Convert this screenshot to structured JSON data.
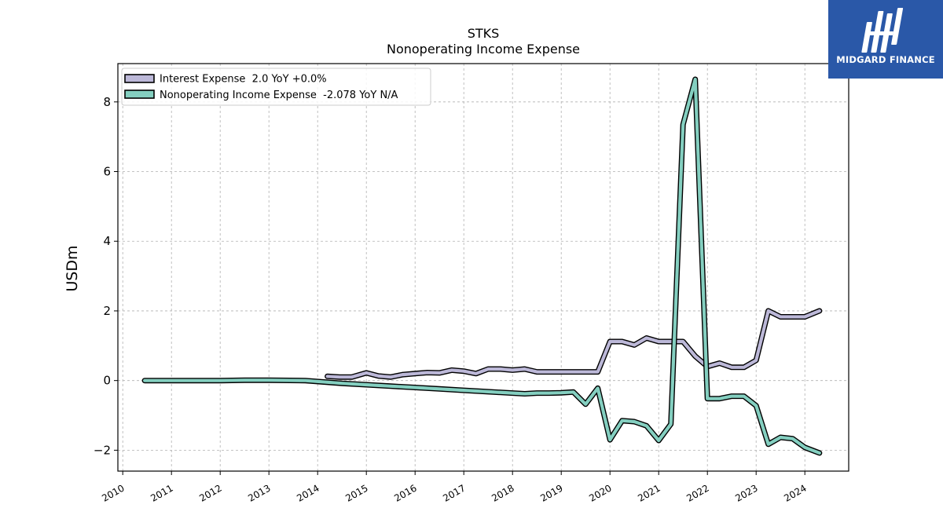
{
  "brand": {
    "name": "MIDGARD FINANCE",
    "icon": "midgard-logo-icon",
    "color": "#2a58a8"
  },
  "chart_data": {
    "type": "line",
    "title": "STKS",
    "subtitle": "Nonoperating Income Expense",
    "xlabel": "",
    "ylabel": "USDm",
    "xlim": [
      2009.9,
      2024.9
    ],
    "ylim": [
      -2.6,
      9.1
    ],
    "x_ticks": [
      2010,
      2011,
      2012,
      2013,
      2014,
      2015,
      2016,
      2017,
      2018,
      2019,
      2020,
      2021,
      2022,
      2023,
      2024
    ],
    "y_ticks": [
      -2,
      0,
      2,
      4,
      6,
      8
    ],
    "y_tick_labels": [
      "−2",
      "0",
      "2",
      "4",
      "6",
      "8"
    ],
    "grid": true,
    "legend_position": "top-left",
    "series": [
      {
        "name": "Interest Expense  2.0 YoY +0.0%",
        "color": "#bcb8d8",
        "x": [
          2014.2,
          2014.45,
          2014.7,
          2015.0,
          2015.25,
          2015.5,
          2015.75,
          2016.0,
          2016.25,
          2016.5,
          2016.75,
          2017.0,
          2017.25,
          2017.5,
          2017.75,
          2018.0,
          2018.25,
          2018.5,
          2018.75,
          2019.0,
          2019.25,
          2019.5,
          2019.75,
          2020.0,
          2020.25,
          2020.5,
          2020.75,
          2021.0,
          2021.25,
          2021.5,
          2021.75,
          2022.0,
          2022.25,
          2022.5,
          2022.75,
          2023.0,
          2023.25,
          2023.5,
          2023.75,
          2024.0,
          2024.3
        ],
        "y": [
          0.12,
          0.1,
          0.1,
          0.22,
          0.13,
          0.1,
          0.17,
          0.2,
          0.23,
          0.22,
          0.3,
          0.27,
          0.2,
          0.33,
          0.33,
          0.3,
          0.33,
          0.25,
          0.25,
          0.25,
          0.25,
          0.25,
          0.25,
          1.12,
          1.12,
          1.02,
          1.22,
          1.12,
          1.12,
          1.12,
          0.7,
          0.4,
          0.5,
          0.38,
          0.38,
          0.58,
          2.0,
          1.83,
          1.83,
          1.83,
          2.0
        ]
      },
      {
        "name": "Nonoperating Income Expense  -2.078 YoY N/A",
        "color": "#84cfc0",
        "x": [
          2010.45,
          2011.0,
          2012.0,
          2012.5,
          2013.0,
          2013.75,
          2014.5,
          2015.0,
          2015.5,
          2016.0,
          2016.5,
          2017.0,
          2017.5,
          2018.0,
          2018.25,
          2018.5,
          2018.75,
          2019.0,
          2019.25,
          2019.5,
          2019.75,
          2020.0,
          2020.25,
          2020.5,
          2020.75,
          2021.0,
          2021.25,
          2021.5,
          2021.75,
          2022.0,
          2022.25,
          2022.5,
          2022.75,
          2023.0,
          2023.25,
          2023.5,
          2023.75,
          2024.0,
          2024.3
        ],
        "y": [
          0.0,
          0.0,
          0.0,
          0.01,
          0.01,
          0.0,
          -0.08,
          -0.12,
          -0.16,
          -0.2,
          -0.24,
          -0.28,
          -0.32,
          -0.36,
          -0.38,
          -0.36,
          -0.36,
          -0.35,
          -0.33,
          -0.68,
          -0.22,
          -1.7,
          -1.15,
          -1.18,
          -1.3,
          -1.72,
          -1.25,
          7.35,
          8.65,
          -0.52,
          -0.52,
          -0.45,
          -0.45,
          -0.72,
          -1.83,
          -1.63,
          -1.67,
          -1.92,
          -2.08
        ]
      }
    ]
  }
}
